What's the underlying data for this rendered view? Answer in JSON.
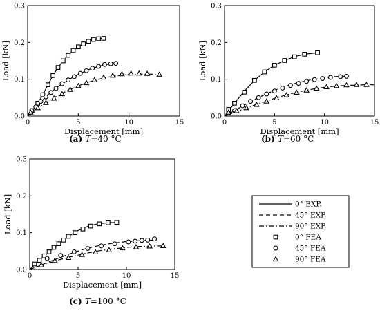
{
  "chart_data": [
    {
      "type": "scatter",
      "caption_letter": "(a)",
      "caption_var": "T",
      "caption_value": "=40 °C",
      "xlabel": "Displacement [mm]",
      "ylabel": "Load [kN]",
      "xlim": [
        0,
        15
      ],
      "ylim": [
        0,
        0.3
      ],
      "xticks": [
        "0",
        "5",
        "10",
        "15"
      ],
      "yticks": [
        "0.0",
        "0.1",
        "0.2",
        "0.3"
      ],
      "series": [
        {
          "name": "0° EXP.",
          "kind": "line",
          "style": "solid",
          "x": [
            0,
            0.5,
            1,
            1.5,
            2,
            2.5,
            3,
            3.5,
            4,
            4.5,
            5,
            5.5,
            6,
            6.5,
            7,
            7.5
          ],
          "y": [
            0,
            0.015,
            0.035,
            0.058,
            0.085,
            0.11,
            0.132,
            0.15,
            0.165,
            0.178,
            0.188,
            0.196,
            0.203,
            0.208,
            0.21,
            0.211
          ]
        },
        {
          "name": "45° EXP.",
          "kind": "line",
          "style": "dashed",
          "x": [
            0,
            1,
            2,
            3,
            4,
            5,
            6,
            7,
            8,
            8.7
          ],
          "y": [
            0,
            0.03,
            0.058,
            0.08,
            0.098,
            0.113,
            0.126,
            0.135,
            0.141,
            0.143
          ]
        },
        {
          "name": "90° EXP.",
          "kind": "line",
          "style": "dashdot",
          "x": [
            0,
            1,
            2,
            3,
            4,
            5,
            6,
            7,
            8,
            9,
            10,
            11,
            12,
            13
          ],
          "y": [
            0,
            0.022,
            0.04,
            0.056,
            0.07,
            0.082,
            0.092,
            0.1,
            0.106,
            0.11,
            0.113,
            0.114,
            0.114,
            0.113
          ]
        },
        {
          "name": "0° FEA",
          "kind": "marker",
          "marker": "square",
          "x": [
            0.5,
            1,
            1.5,
            2,
            2.5,
            3,
            3.5,
            4,
            4.5,
            5,
            5.5,
            6,
            6.5,
            7,
            7.5
          ],
          "y": [
            0.015,
            0.035,
            0.058,
            0.085,
            0.11,
            0.132,
            0.15,
            0.165,
            0.178,
            0.188,
            0.196,
            0.203,
            0.208,
            0.21,
            0.211
          ]
        },
        {
          "name": "45° FEA",
          "kind": "marker",
          "marker": "circle",
          "x": [
            0.4,
            0.8,
            1.3,
            1.8,
            2.3,
            2.8,
            3.4,
            4,
            4.6,
            5.2,
            5.8,
            6.4,
            7,
            7.6,
            8.2,
            8.7
          ],
          "y": [
            0.015,
            0.025,
            0.04,
            0.052,
            0.064,
            0.075,
            0.088,
            0.098,
            0.107,
            0.116,
            0.123,
            0.13,
            0.135,
            0.14,
            0.142,
            0.143
          ]
        },
        {
          "name": "90° FEA",
          "kind": "marker",
          "marker": "triangle",
          "x": [
            0.3,
            1,
            1.8,
            2.6,
            3.4,
            4.2,
            5,
            5.8,
            6.6,
            7.5,
            8.4,
            9.3,
            10.2,
            11,
            11.8,
            13
          ],
          "y": [
            0.01,
            0.022,
            0.036,
            0.048,
            0.06,
            0.072,
            0.082,
            0.09,
            0.098,
            0.105,
            0.11,
            0.114,
            0.116,
            0.116,
            0.115,
            0.113
          ]
        }
      ]
    },
    {
      "type": "scatter",
      "caption_letter": "(b)",
      "caption_var": "T",
      "caption_value": "=60 °C",
      "xlabel": "Displacement [mm]",
      "ylabel": "Load [kN]",
      "xlim": [
        0,
        15
      ],
      "ylim": [
        0,
        0.3
      ],
      "xticks": [
        "0",
        "5",
        "10",
        "15"
      ],
      "yticks": [
        "0.0",
        "0.1",
        "0.2",
        "0.3"
      ],
      "series": [
        {
          "name": "0° EXP.",
          "kind": "line",
          "style": "solid",
          "x": [
            0,
            1,
            2,
            3,
            4,
            5,
            6,
            7,
            8,
            9.3
          ],
          "y": [
            0,
            0.035,
            0.068,
            0.097,
            0.12,
            0.138,
            0.151,
            0.161,
            0.168,
            0.172
          ]
        },
        {
          "name": "45° EXP.",
          "kind": "line",
          "style": "dashed",
          "x": [
            0,
            1,
            2,
            3,
            4,
            5,
            6,
            7,
            8,
            9,
            10,
            11,
            12.2
          ],
          "y": [
            0,
            0.015,
            0.03,
            0.045,
            0.058,
            0.07,
            0.08,
            0.088,
            0.095,
            0.1,
            0.104,
            0.107,
            0.108
          ]
        },
        {
          "name": "90° EXP.",
          "kind": "line",
          "style": "dashdot",
          "x": [
            0,
            1,
            2,
            3,
            4,
            5,
            6,
            7,
            8,
            9,
            10,
            11,
            12,
            13,
            14,
            15
          ],
          "y": [
            0,
            0.01,
            0.02,
            0.03,
            0.039,
            0.048,
            0.056,
            0.063,
            0.069,
            0.074,
            0.078,
            0.081,
            0.083,
            0.084,
            0.085,
            0.085
          ]
        },
        {
          "name": "0° FEA",
          "kind": "marker",
          "marker": "square",
          "x": [
            0.4,
            1,
            2,
            3,
            4,
            5,
            6,
            7,
            8,
            9.3
          ],
          "y": [
            0.018,
            0.035,
            0.065,
            0.097,
            0.12,
            0.138,
            0.151,
            0.161,
            0.168,
            0.172
          ]
        },
        {
          "name": "45° FEA",
          "kind": "marker",
          "marker": "circle",
          "x": [
            0.4,
            1,
            1.8,
            2.6,
            3.4,
            4.2,
            5,
            5.8,
            6.6,
            7.4,
            8.2,
            9,
            9.8,
            10.6,
            11.6,
            12.2
          ],
          "y": [
            0.008,
            0.015,
            0.028,
            0.04,
            0.05,
            0.06,
            0.068,
            0.076,
            0.083,
            0.089,
            0.094,
            0.099,
            0.102,
            0.105,
            0.107,
            0.108
          ]
        },
        {
          "name": "90° FEA",
          "kind": "marker",
          "marker": "triangle",
          "x": [
            0.4,
            1.2,
            2.2,
            3.2,
            4.2,
            5.2,
            6.2,
            7.2,
            8.2,
            9.2,
            10.2,
            11.2,
            12.2,
            13.2,
            14.2
          ],
          "y": [
            0.01,
            0.014,
            0.022,
            0.031,
            0.04,
            0.049,
            0.057,
            0.064,
            0.07,
            0.075,
            0.079,
            0.082,
            0.084,
            0.085,
            0.085
          ]
        }
      ]
    },
    {
      "type": "scatter",
      "caption_letter": "(c)",
      "caption_var": "T",
      "caption_value": "=100 °C",
      "xlabel": "Displacement [mm]",
      "ylabel": "Load [kN]",
      "xlim": [
        0,
        15
      ],
      "ylim": [
        0,
        0.3
      ],
      "xticks": [
        "0",
        "5",
        "10",
        "15"
      ],
      "yticks": [
        "0.0",
        "0.1",
        "0.2",
        "0.3"
      ],
      "series": [
        {
          "name": "0° EXP.",
          "kind": "line",
          "style": "solid",
          "x": [
            0,
            1,
            2,
            3,
            4,
            5,
            6,
            7,
            8,
            9
          ],
          "y": [
            0,
            0.025,
            0.048,
            0.07,
            0.09,
            0.106,
            0.117,
            0.124,
            0.127,
            0.128
          ]
        },
        {
          "name": "45° EXP.",
          "kind": "line",
          "style": "dashed",
          "x": [
            0,
            1,
            2,
            3,
            4,
            5,
            6,
            7,
            8,
            9,
            10,
            11,
            12,
            13
          ],
          "y": [
            0,
            0.01,
            0.021,
            0.031,
            0.041,
            0.05,
            0.058,
            0.064,
            0.069,
            0.073,
            0.076,
            0.078,
            0.079,
            0.08
          ]
        },
        {
          "name": "90° EXP.",
          "kind": "line",
          "style": "dashdot",
          "x": [
            0,
            1,
            2,
            3,
            4,
            5,
            6,
            7,
            8,
            9,
            10,
            11,
            12,
            13,
            14
          ],
          "y": [
            0,
            0.01,
            0.018,
            0.026,
            0.033,
            0.039,
            0.045,
            0.05,
            0.054,
            0.057,
            0.06,
            0.062,
            0.063,
            0.064,
            0.064
          ]
        },
        {
          "name": "0° FEA",
          "kind": "marker",
          "marker": "square",
          "x": [
            0.5,
            1,
            1.5,
            2,
            2.5,
            3,
            3.5,
            4,
            4.7,
            5.5,
            6.3,
            7.2,
            8.1,
            9
          ],
          "y": [
            0.015,
            0.025,
            0.037,
            0.048,
            0.06,
            0.07,
            0.08,
            0.09,
            0.1,
            0.11,
            0.118,
            0.124,
            0.127,
            0.128
          ]
        },
        {
          "name": "45° FEA",
          "kind": "marker",
          "marker": "circle",
          "x": [
            1.8,
            3.2,
            4.6,
            6,
            7.4,
            8.8,
            10.2,
            10.9,
            11.6,
            12.2,
            12.9
          ],
          "y": [
            0.03,
            0.038,
            0.048,
            0.057,
            0.064,
            0.07,
            0.075,
            0.077,
            0.079,
            0.08,
            0.083
          ]
        },
        {
          "name": "90° FEA",
          "kind": "marker",
          "marker": "triangle",
          "x": [
            1.2,
            2.6,
            4,
            5.4,
            6.8,
            8.2,
            9.6,
            11,
            12.4,
            13.8
          ],
          "y": [
            0.012,
            0.024,
            0.032,
            0.04,
            0.047,
            0.053,
            0.058,
            0.061,
            0.063,
            0.064
          ]
        }
      ]
    }
  ],
  "legend": {
    "items": [
      {
        "label": "0° EXP.",
        "kind": "line",
        "style": "solid"
      },
      {
        "label": "45° EXP.",
        "kind": "line",
        "style": "dashed"
      },
      {
        "label": "90° EXP.",
        "kind": "line",
        "style": "dashdot"
      },
      {
        "label": "0° FEA",
        "kind": "marker",
        "marker": "square"
      },
      {
        "label": "45° FEA",
        "kind": "marker",
        "marker": "circle"
      },
      {
        "label": "90° FEA",
        "kind": "marker",
        "marker": "triangle"
      }
    ]
  }
}
